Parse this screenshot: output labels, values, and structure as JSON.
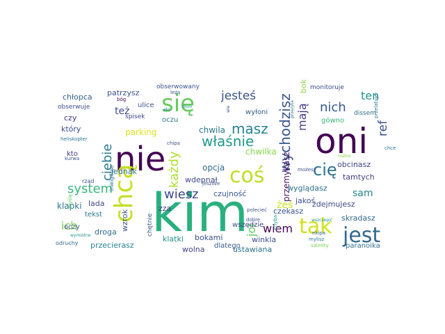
{
  "words": [
    {
      "text": "kim",
      "size": 76,
      "color": "#2ab07f"
    },
    {
      "text": "oni",
      "size": 50,
      "color": "#440154"
    },
    {
      "text": "nie",
      "size": 48,
      "color": "#440154"
    },
    {
      "text": "chcą",
      "size": 36,
      "color": "#c5df26"
    },
    {
      "text": "się",
      "size": 34,
      "color": "#66cb5d"
    },
    {
      "text": "coś",
      "size": 30,
      "color": "#bddf26"
    },
    {
      "text": "tak",
      "size": 30,
      "color": "#d2e21b"
    },
    {
      "text": "jest",
      "size": 30,
      "color": "#31688e"
    },
    {
      "text": "cię",
      "size": 24,
      "color": "#2d718e"
    },
    {
      "text": "masz",
      "size": 20,
      "color": "#26828e"
    },
    {
      "text": "wychodzisz",
      "size": 20,
      "color": "#39558c"
    },
    {
      "text": "właśnie",
      "size": 20,
      "color": "#1f9a8a"
    },
    {
      "text": "nich",
      "size": 18,
      "color": "#38588c"
    },
    {
      "text": "system",
      "size": 18,
      "color": "#35b779"
    },
    {
      "text": "każdy",
      "size": 18,
      "color": "#b0dd2f"
    },
    {
      "text": "ciebie",
      "size": 18,
      "color": "#287c8e"
    },
    {
      "text": "wiesz",
      "size": 18,
      "color": "#3e4989"
    },
    {
      "text": "jesteś",
      "size": 17,
      "color": "#3b528b"
    },
    {
      "text": "ref",
      "size": 17,
      "color": "#3b528b"
    },
    {
      "text": "mają",
      "size": 16,
      "color": "#433e85"
    },
    {
      "text": "ten",
      "size": 16,
      "color": "#21918c"
    },
    {
      "text": "jol",
      "size": 16,
      "color": "#5ec962"
    },
    {
      "text": "wiem",
      "size": 16,
      "color": "#440154"
    },
    {
      "text": "ich",
      "size": 16,
      "color": "#7ad151"
    },
    {
      "text": "sam",
      "size": 14,
      "color": "#25858e"
    },
    {
      "text": "też",
      "size": 14,
      "color": "#3e4c8a"
    },
    {
      "text": "żeś",
      "size": 14,
      "color": "#c8e020"
    },
    {
      "text": "przemykasz",
      "size": 12,
      "color": "#471164"
    },
    {
      "text": "opcja",
      "size": 12,
      "color": "#2f6c8e"
    },
    {
      "text": "chwila",
      "size": 12,
      "color": "#2a788e"
    },
    {
      "text": "chwilka",
      "size": 12,
      "color": "#86d549"
    },
    {
      "text": "parking",
      "size": 12,
      "color": "#dde318"
    },
    {
      "text": "chłopca",
      "size": 11,
      "color": "#355f8d"
    },
    {
      "text": "patrzysz",
      "size": 11,
      "color": "#3b528b"
    },
    {
      "text": "wyłoni",
      "size": 10,
      "color": "#365c8d"
    },
    {
      "text": "obcinasz",
      "size": 11,
      "color": "#414487"
    },
    {
      "text": "tamtych",
      "size": 11,
      "color": "#433d84"
    },
    {
      "text": "klapki",
      "size": 12,
      "color": "#2c728e"
    },
    {
      "text": "jednak",
      "size": 11,
      "color": "#2e6f8e"
    },
    {
      "text": "wdepnął",
      "size": 11,
      "color": "#3f4788"
    },
    {
      "text": "czujność",
      "size": 11,
      "color": "#39568c"
    },
    {
      "text": "wyglądasz",
      "size": 11,
      "color": "#2d708e"
    },
    {
      "text": "jakoś",
      "size": 11,
      "color": "#3b528b"
    },
    {
      "text": "zdejmujesz",
      "size": 11,
      "color": "#3f4889"
    },
    {
      "text": "skradasz",
      "size": 11,
      "color": "#31678e"
    },
    {
      "text": "czekasz",
      "size": 11,
      "color": "#3b528b"
    },
    {
      "text": "lada",
      "size": 11,
      "color": "#3e4989"
    },
    {
      "text": "wzrok",
      "size": 11,
      "color": "#3b528b"
    },
    {
      "text": "zza",
      "size": 11,
      "color": "#433e85"
    },
    {
      "text": "droga",
      "size": 11,
      "color": "#2f6b8e"
    },
    {
      "text": "przecierasz",
      "size": 11,
      "color": "#26828e"
    },
    {
      "text": "klatki",
      "size": 11,
      "color": "#21918c"
    },
    {
      "text": "bokami",
      "size": 11,
      "color": "#3b528b"
    },
    {
      "text": "winkla",
      "size": 11,
      "color": "#3b528b"
    },
    {
      "text": "wolna",
      "size": 11,
      "color": "#414487"
    },
    {
      "text": "ustawiana",
      "size": 11,
      "color": "#2c738e"
    },
    {
      "text": "dlatego",
      "size": 10,
      "color": "#38588c"
    },
    {
      "text": "paranoika",
      "size": 10,
      "color": "#2d708e"
    },
    {
      "text": "tekst",
      "size": 10,
      "color": "#2a768e"
    },
    {
      "text": "oczy",
      "size": 10,
      "color": "#3b528b"
    },
    {
      "text": "kto",
      "size": 10,
      "color": "#453581"
    },
    {
      "text": "który",
      "size": 11,
      "color": "#3e4a89"
    },
    {
      "text": "czy",
      "size": 11,
      "color": "#453882"
    },
    {
      "text": "oczu",
      "size": 10,
      "color": "#2a768e"
    },
    {
      "text": "ulice",
      "size": 10,
      "color": "#3b528b"
    },
    {
      "text": "spisek",
      "size": 9,
      "color": "#414487"
    },
    {
      "text": "obserwuje",
      "size": 9,
      "color": "#3d4d8a"
    },
    {
      "text": "obserwowany",
      "size": 9,
      "color": "#3b528b"
    },
    {
      "text": "monitoruje",
      "size": 9,
      "color": "#3e4989"
    },
    {
      "text": "dissem",
      "size": 9,
      "color": "#2d708e"
    },
    {
      "text": "gówno",
      "size": 10,
      "color": "#35b779"
    },
    {
      "text": "bok",
      "size": 11,
      "color": "#8fd744"
    },
    {
      "text": "chętnie",
      "size": 9,
      "color": "#3b528b"
    },
    {
      "text": "wszędzie",
      "size": 10,
      "color": "#3e4989"
    },
    {
      "text": "inwigiluje",
      "size": 8,
      "color": "#2a788e"
    },
    {
      "text": "rząd",
      "size": 8,
      "color": "#3b528b"
    },
    {
      "text": "leżą",
      "size": 7,
      "color": "#3b528b"
    },
    {
      "text": "bóg",
      "size": 7,
      "color": "#440154"
    },
    {
      "text": "zło",
      "size": 7,
      "color": "#26828e"
    },
    {
      "text": "złom",
      "size": 6,
      "color": "#21918c"
    },
    {
      "text": "chipa",
      "size": 7,
      "color": "#3b528b"
    },
    {
      "text": "heliskopter",
      "size": 7,
      "color": "#2a788e"
    },
    {
      "text": "kurwa",
      "size": 7,
      "color": "#3b528b"
    },
    {
      "text": "myślę",
      "size": 7,
      "color": "#5ec962"
    },
    {
      "text": "wymiotne",
      "size": 6,
      "color": "#21918c"
    },
    {
      "text": "odruchy",
      "size": 8,
      "color": "#31688e"
    },
    {
      "text": "mylisz",
      "size": 7,
      "color": "#2a788e"
    },
    {
      "text": "satelity",
      "size": 7,
      "color": "#7ad151"
    },
    {
      "text": "ekipa",
      "size": 7,
      "color": "#31688e"
    },
    {
      "text": "wszczepić",
      "size": 6,
      "color": "#21918c"
    },
    {
      "text": "możesz",
      "size": 7,
      "color": "#3b528b"
    },
    {
      "text": "jeszcze",
      "size": 7,
      "color": "#3b528b"
    },
    {
      "text": "dobre",
      "size": 7,
      "color": "#3b528b"
    },
    {
      "text": "polecieć",
      "size": 7,
      "color": "#3b528b"
    },
    {
      "text": "chyba",
      "size": 7,
      "color": "#1f9a8a"
    },
    {
      "text": "niebie",
      "size": 6,
      "color": "#8fd744"
    },
    {
      "text": "chce",
      "size": 7,
      "color": "#2a788e"
    },
    {
      "text": "przelatuje",
      "size": 7,
      "color": "#2a788e"
    },
    {
      "text": "przezyta",
      "size": 6,
      "color": "#2a788e"
    },
    {
      "text": "wie",
      "size": 6,
      "color": "#3b528b"
    }
  ]
}
